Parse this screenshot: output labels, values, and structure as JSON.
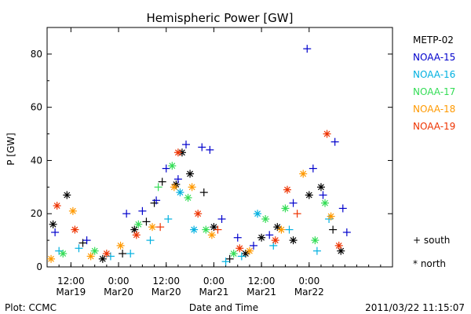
{
  "chart_data": {
    "type": "scatter",
    "title": "Hemispheric Power [GW]",
    "ylabel": "P [GW]",
    "xlabel": "Date and Time",
    "ylim": [
      0,
      90
    ],
    "yticks": [
      0,
      20,
      40,
      60,
      80
    ],
    "xlim": [
      "2011-03-19 06:00",
      "2011-03-22 21:00"
    ],
    "xticks": [
      {
        "t": "2011-03-19 12:00",
        "top": "12:00",
        "bottom": "Mar19"
      },
      {
        "t": "2011-03-20 00:00",
        "top": "0:00",
        "bottom": "Mar20"
      },
      {
        "t": "2011-03-20 12:00",
        "top": "12:00",
        "bottom": "Mar20"
      },
      {
        "t": "2011-03-21 00:00",
        "top": "0:00",
        "bottom": "Mar21"
      },
      {
        "t": "2011-03-21 12:00",
        "top": "12:00",
        "bottom": "Mar21"
      },
      {
        "t": "2011-03-22 00:00",
        "top": "0:00",
        "bottom": "Mar22"
      }
    ],
    "legend_placement": "right",
    "marker_legend": [
      {
        "symbol": "+",
        "label": "south"
      },
      {
        "symbol": "*",
        "label": "north"
      }
    ],
    "series": [
      {
        "name": "METP-02",
        "color": "#000000",
        "points": [
          {
            "t": "2011-03-19 07:30",
            "y": 16,
            "m": "*"
          },
          {
            "t": "2011-03-19 11:00",
            "y": 27,
            "m": "*"
          },
          {
            "t": "2011-03-19 15:00",
            "y": 9,
            "m": "+"
          },
          {
            "t": "2011-03-19 20:00",
            "y": 3,
            "m": "*"
          },
          {
            "t": "2011-03-20 01:00",
            "y": 5,
            "m": "+"
          },
          {
            "t": "2011-03-20 04:00",
            "y": 14,
            "m": "*"
          },
          {
            "t": "2011-03-20 07:00",
            "y": 17,
            "m": "+"
          },
          {
            "t": "2011-03-20 09:00",
            "y": 24,
            "m": "+"
          },
          {
            "t": "2011-03-20 11:00",
            "y": 32,
            "m": "+"
          },
          {
            "t": "2011-03-20 14:30",
            "y": 31,
            "m": "*"
          },
          {
            "t": "2011-03-20 16:00",
            "y": 43,
            "m": "*"
          },
          {
            "t": "2011-03-20 18:00",
            "y": 35,
            "m": "*"
          },
          {
            "t": "2011-03-20 21:30",
            "y": 28,
            "m": "+"
          },
          {
            "t": "2011-03-21 00:00",
            "y": 15,
            "m": "*"
          },
          {
            "t": "2011-03-21 04:00",
            "y": 3,
            "m": "+"
          },
          {
            "t": "2011-03-21 08:00",
            "y": 5,
            "m": "*"
          },
          {
            "t": "2011-03-21 12:00",
            "y": 11,
            "m": "*"
          },
          {
            "t": "2011-03-21 16:00",
            "y": 15,
            "m": "*"
          },
          {
            "t": "2011-03-21 20:00",
            "y": 10,
            "m": "*"
          },
          {
            "t": "2011-03-22 00:00",
            "y": 27,
            "m": "*"
          },
          {
            "t": "2011-03-22 03:00",
            "y": 30,
            "m": "*"
          },
          {
            "t": "2011-03-22 06:00",
            "y": 14,
            "m": "+"
          },
          {
            "t": "2011-03-22 08:00",
            "y": 6,
            "m": "*"
          }
        ]
      },
      {
        "name": "NOAA-15",
        "color": "#0000cc",
        "points": [
          {
            "t": "2011-03-19 08:00",
            "y": 13,
            "m": "+"
          },
          {
            "t": "2011-03-19 16:00",
            "y": 10,
            "m": "+"
          },
          {
            "t": "2011-03-20 02:00",
            "y": 20,
            "m": "+"
          },
          {
            "t": "2011-03-20 06:00",
            "y": 21,
            "m": "+"
          },
          {
            "t": "2011-03-20 09:30",
            "y": 25,
            "m": "+"
          },
          {
            "t": "2011-03-20 12:00",
            "y": 37,
            "m": "+"
          },
          {
            "t": "2011-03-20 15:00",
            "y": 33,
            "m": "+"
          },
          {
            "t": "2011-03-20 17:00",
            "y": 46,
            "m": "+"
          },
          {
            "t": "2011-03-20 21:00",
            "y": 45,
            "m": "+"
          },
          {
            "t": "2011-03-20 23:00",
            "y": 44,
            "m": "+"
          },
          {
            "t": "2011-03-21 02:00",
            "y": 18,
            "m": "+"
          },
          {
            "t": "2011-03-21 06:00",
            "y": 11,
            "m": "+"
          },
          {
            "t": "2011-03-21 10:00",
            "y": 8,
            "m": "+"
          },
          {
            "t": "2011-03-21 14:00",
            "y": 12,
            "m": "+"
          },
          {
            "t": "2011-03-21 20:00",
            "y": 24,
            "m": "+"
          },
          {
            "t": "2011-03-21 23:30",
            "y": 82,
            "m": "+"
          },
          {
            "t": "2011-03-22 01:00",
            "y": 37,
            "m": "+"
          },
          {
            "t": "2011-03-22 03:30",
            "y": 27,
            "m": "+"
          },
          {
            "t": "2011-03-22 06:30",
            "y": 47,
            "m": "+"
          },
          {
            "t": "2011-03-22 08:30",
            "y": 22,
            "m": "+"
          },
          {
            "t": "2011-03-22 09:30",
            "y": 13,
            "m": "+"
          }
        ]
      },
      {
        "name": "NOAA-16",
        "color": "#00b0e0",
        "points": [
          {
            "t": "2011-03-19 09:00",
            "y": 6,
            "m": "+"
          },
          {
            "t": "2011-03-19 14:00",
            "y": 7,
            "m": "+"
          },
          {
            "t": "2011-03-19 22:00",
            "y": 4,
            "m": "+"
          },
          {
            "t": "2011-03-20 03:00",
            "y": 5,
            "m": "+"
          },
          {
            "t": "2011-03-20 08:00",
            "y": 10,
            "m": "+"
          },
          {
            "t": "2011-03-20 12:30",
            "y": 18,
            "m": "+"
          },
          {
            "t": "2011-03-20 15:30",
            "y": 28,
            "m": "*"
          },
          {
            "t": "2011-03-20 19:00",
            "y": 14,
            "m": "*"
          },
          {
            "t": "2011-03-21 03:00",
            "y": 2,
            "m": "+"
          },
          {
            "t": "2011-03-21 07:00",
            "y": 4,
            "m": "+"
          },
          {
            "t": "2011-03-21 11:00",
            "y": 20,
            "m": "*"
          },
          {
            "t": "2011-03-21 15:00",
            "y": 8,
            "m": "+"
          },
          {
            "t": "2011-03-21 19:00",
            "y": 14,
            "m": "+"
          },
          {
            "t": "2011-03-22 02:00",
            "y": 6,
            "m": "+"
          },
          {
            "t": "2011-03-22 05:00",
            "y": 18,
            "m": "+"
          }
        ]
      },
      {
        "name": "NOAA-17",
        "color": "#33dd55",
        "points": [
          {
            "t": "2011-03-19 10:00",
            "y": 5,
            "m": "*"
          },
          {
            "t": "2011-03-19 18:00",
            "y": 6,
            "m": "*"
          },
          {
            "t": "2011-03-20 05:00",
            "y": 16,
            "m": "*"
          },
          {
            "t": "2011-03-20 10:00",
            "y": 30,
            "m": "+"
          },
          {
            "t": "2011-03-20 13:30",
            "y": 38,
            "m": "*"
          },
          {
            "t": "2011-03-20 17:30",
            "y": 26,
            "m": "*"
          },
          {
            "t": "2011-03-20 22:00",
            "y": 14,
            "m": "*"
          },
          {
            "t": "2011-03-21 05:00",
            "y": 5,
            "m": "*"
          },
          {
            "t": "2011-03-21 13:00",
            "y": 18,
            "m": "*"
          },
          {
            "t": "2011-03-21 18:00",
            "y": 22,
            "m": "*"
          },
          {
            "t": "2011-03-22 01:30",
            "y": 10,
            "m": "*"
          },
          {
            "t": "2011-03-22 04:00",
            "y": 24,
            "m": "*"
          }
        ]
      },
      {
        "name": "NOAA-18",
        "color": "#ff9900",
        "points": [
          {
            "t": "2011-03-19 07:00",
            "y": 3,
            "m": "*"
          },
          {
            "t": "2011-03-19 12:30",
            "y": 21,
            "m": "*"
          },
          {
            "t": "2011-03-19 17:00",
            "y": 4,
            "m": "*"
          },
          {
            "t": "2011-03-20 00:30",
            "y": 8,
            "m": "*"
          },
          {
            "t": "2011-03-20 08:30",
            "y": 15,
            "m": "*"
          },
          {
            "t": "2011-03-20 14:00",
            "y": 30,
            "m": "*"
          },
          {
            "t": "2011-03-20 18:30",
            "y": 30,
            "m": "*"
          },
          {
            "t": "2011-03-20 23:30",
            "y": 12,
            "m": "*"
          },
          {
            "t": "2011-03-21 09:00",
            "y": 6,
            "m": "*"
          },
          {
            "t": "2011-03-21 17:00",
            "y": 14,
            "m": "*"
          },
          {
            "t": "2011-03-21 22:30",
            "y": 35,
            "m": "*"
          },
          {
            "t": "2011-03-22 05:30",
            "y": 19,
            "m": "*"
          }
        ]
      },
      {
        "name": "NOAA-19",
        "color": "#ee3300",
        "points": [
          {
            "t": "2011-03-19 08:30",
            "y": 23,
            "m": "*"
          },
          {
            "t": "2011-03-19 13:00",
            "y": 14,
            "m": "*"
          },
          {
            "t": "2011-03-19 21:00",
            "y": 5,
            "m": "*"
          },
          {
            "t": "2011-03-20 04:30",
            "y": 12,
            "m": "*"
          },
          {
            "t": "2011-03-20 10:30",
            "y": 15,
            "m": "+"
          },
          {
            "t": "2011-03-20 15:00",
            "y": 43,
            "m": "*"
          },
          {
            "t": "2011-03-20 20:00",
            "y": 20,
            "m": "*"
          },
          {
            "t": "2011-03-21 01:00",
            "y": 14,
            "m": "+"
          },
          {
            "t": "2011-03-21 06:30",
            "y": 7,
            "m": "*"
          },
          {
            "t": "2011-03-21 15:30",
            "y": 10,
            "m": "*"
          },
          {
            "t": "2011-03-21 18:30",
            "y": 29,
            "m": "*"
          },
          {
            "t": "2011-03-21 21:00",
            "y": 20,
            "m": "+"
          },
          {
            "t": "2011-03-22 04:30",
            "y": 50,
            "m": "*"
          },
          {
            "t": "2011-03-22 07:30",
            "y": 8,
            "m": "*"
          }
        ]
      }
    ]
  },
  "footer": {
    "left": "Plot: CCMC",
    "center": "Date and Time",
    "right": "2011/03/22 11:15:07"
  }
}
